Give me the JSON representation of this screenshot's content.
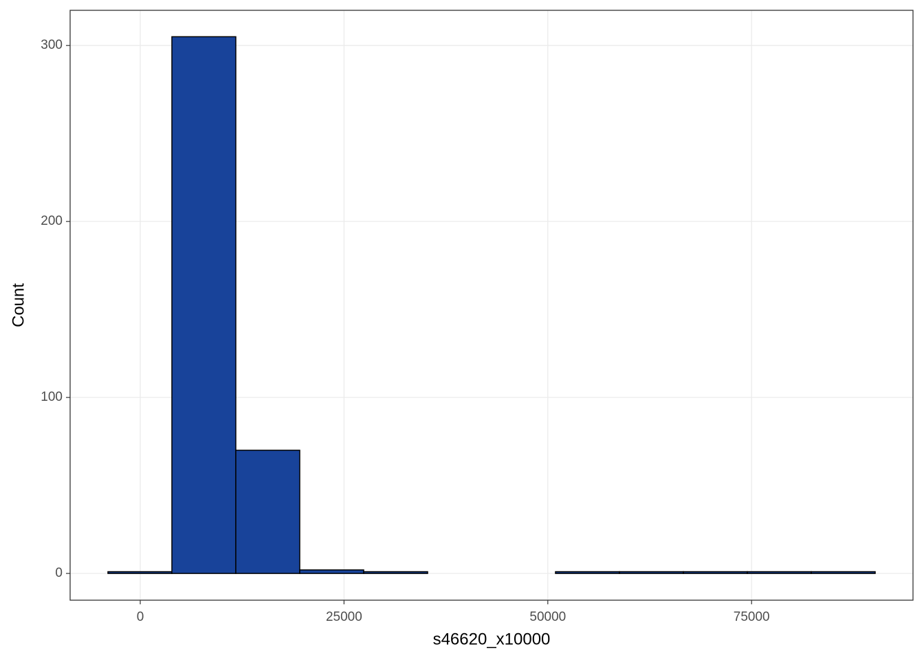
{
  "chart_data": {
    "type": "histogram",
    "x_label": "s46620_x10000",
    "y_label": "Count",
    "bins": [
      -3964,
      3880,
      11724,
      19568,
      27412,
      35256,
      43100,
      50944,
      58788,
      66632,
      74476,
      82320,
      90164
    ],
    "values": [
      1,
      305,
      70,
      2,
      1,
      0,
      0,
      1,
      1,
      1,
      1,
      1
    ],
    "color": "#18439a",
    "edge_color": "#000000",
    "xlim": [
      -8603,
      94804
    ],
    "ylim": [
      -15.2,
      320
    ],
    "xticks": [
      0,
      25000,
      50000,
      75000
    ],
    "yticks": [
      0,
      100,
      200,
      300
    ],
    "grid": true
  }
}
